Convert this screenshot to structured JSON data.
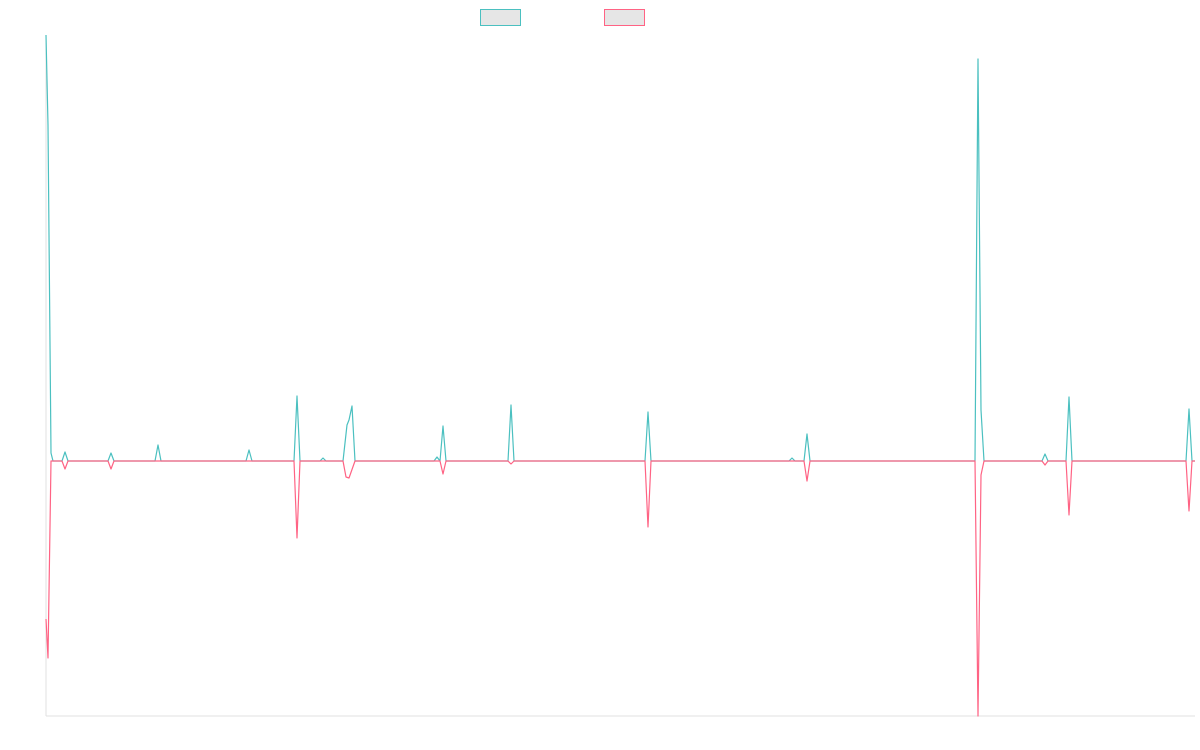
{
  "chart_data": {
    "type": "line",
    "xlim": [
      0,
      1149
    ],
    "ylim": [
      -255,
      426
    ],
    "series": [
      {
        "color": "#4bc0c0",
        "x": [
          0,
          2,
          5,
          7,
          16,
          19,
          22,
          62,
          65,
          68,
          109,
          112,
          115,
          200,
          203,
          206,
          248,
          251,
          254,
          274,
          277,
          280,
          297,
          301,
          303,
          306,
          309,
          388,
          391,
          394,
          397,
          400,
          462,
          465,
          468,
          599,
          602,
          605,
          743,
          746,
          749,
          758,
          761,
          764,
          929,
          932,
          935,
          938,
          996,
          999,
          1002,
          1020,
          1023,
          1026,
          1140,
          1143,
          1146,
          1149
        ],
        "values": [
          426,
          336,
          8,
          0,
          0,
          9,
          0,
          0,
          8,
          0,
          0,
          16,
          0,
          0,
          11,
          0,
          0,
          65,
          0,
          0,
          3,
          0,
          0,
          36,
          41,
          55,
          0,
          0,
          4,
          0,
          35,
          0,
          0,
          56,
          0,
          0,
          49,
          0,
          0,
          3,
          0,
          0,
          27,
          0,
          0,
          402,
          51,
          0,
          0,
          7,
          0,
          0,
          64,
          0,
          0,
          52,
          0,
          0
        ]
      },
      {
        "color": "#ff6384",
        "x": [
          0,
          2,
          5,
          16,
          19,
          22,
          62,
          65,
          68,
          248,
          251,
          254,
          297,
          300,
          303,
          309,
          394,
          397,
          400,
          462,
          465,
          468,
          599,
          602,
          605,
          758,
          761,
          764,
          929,
          932,
          935,
          938,
          996,
          999,
          1002,
          1020,
          1023,
          1026,
          1140,
          1143,
          1146,
          1149
        ],
        "values": [
          -158,
          -197,
          0,
          0,
          -8,
          0,
          0,
          -8,
          0,
          0,
          -77,
          0,
          0,
          -16,
          -17,
          0,
          0,
          -13,
          0,
          0,
          -3,
          0,
          0,
          -66,
          0,
          0,
          -20,
          0,
          0,
          -255,
          -14,
          0,
          0,
          -4,
          0,
          0,
          -54,
          0,
          0,
          -50,
          0,
          0
        ]
      }
    ]
  }
}
